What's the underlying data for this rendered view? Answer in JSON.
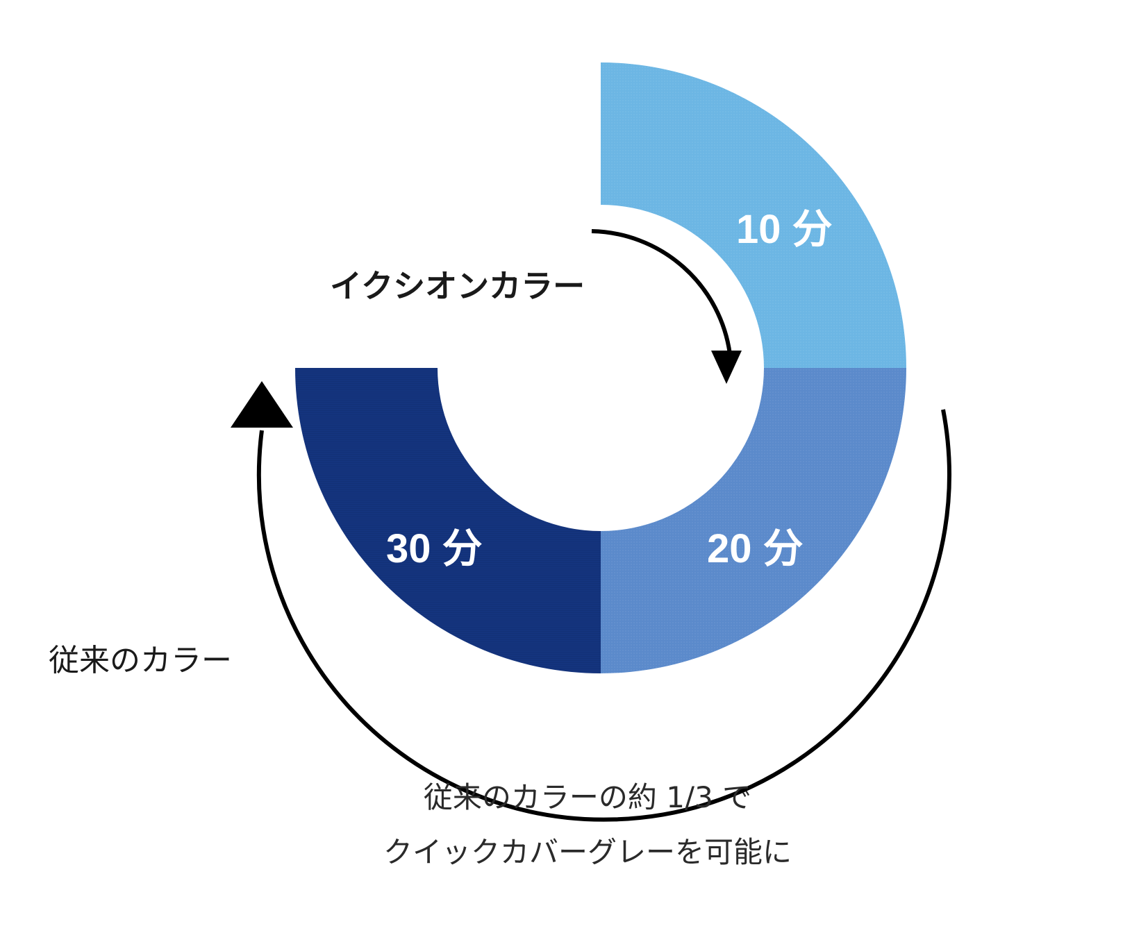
{
  "segments": [
    {
      "label": "10 分",
      "minutes": 10,
      "color": "#6cb6e4"
    },
    {
      "label": "20 分",
      "minutes": 20,
      "color": "#5b8acb"
    },
    {
      "label": "30 分",
      "minutes": 30,
      "color": "#14347e"
    }
  ],
  "flows": {
    "ixion": {
      "label": "イクシオンカラー"
    },
    "conventional": {
      "label": "従来のカラー"
    }
  },
  "caption": {
    "line1": "従来のカラーの約 1/3 で",
    "line2": "クイックカバーグレーを可能に"
  }
}
